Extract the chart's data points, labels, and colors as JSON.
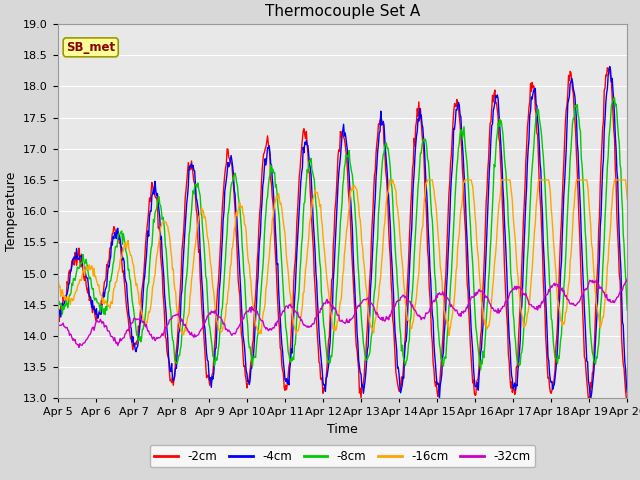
{
  "title": "Thermocouple Set A",
  "xlabel": "Time",
  "ylabel": "Temperature",
  "ylim": [
    13.0,
    19.0
  ],
  "yticks": [
    13.0,
    13.5,
    14.0,
    14.5,
    15.0,
    15.5,
    16.0,
    16.5,
    17.0,
    17.5,
    18.0,
    18.5,
    19.0
  ],
  "xtick_labels": [
    "Apr 5",
    "Apr 6",
    "Apr 7",
    "Apr 8",
    "Apr 9",
    "Apr 10",
    "Apr 11",
    "Apr 12",
    "Apr 13",
    "Apr 14",
    "Apr 15",
    "Apr 16",
    "Apr 17",
    "Apr 18",
    "Apr 19",
    "Apr 20"
  ],
  "colors": {
    "-2cm": "#FF0000",
    "-4cm": "#0000FF",
    "-8cm": "#00CC00",
    "-16cm": "#FFA500",
    "-32cm": "#CC00CC"
  },
  "legend_label": "SB_met",
  "legend_bg": "#FFFF99",
  "legend_border": "#999900",
  "plot_bg": "#E8E8E8",
  "grid_color": "#FFFFFF",
  "title_fontsize": 11,
  "axis_fontsize": 9,
  "tick_fontsize": 8
}
